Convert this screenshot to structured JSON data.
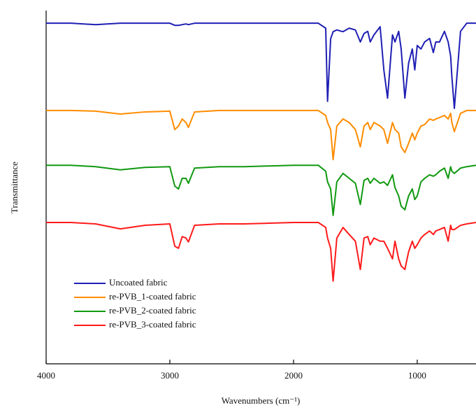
{
  "chart_data": {
    "type": "line",
    "x_label": "Wavenumbers (cm⁻¹)",
    "y_label": "Transmittance",
    "xlim": [
      4000,
      525
    ],
    "ylim": [
      0,
      100
    ],
    "xticks": [
      4000,
      3000,
      2000,
      1000
    ],
    "legend": "lower left",
    "x": [
      4000,
      3800,
      3600,
      3400,
      3200,
      3000,
      2960,
      2930,
      2900,
      2870,
      2850,
      2800,
      2600,
      2400,
      2200,
      2000,
      1800,
      1740,
      1725,
      1700,
      1680,
      1650,
      1600,
      1550,
      1500,
      1460,
      1430,
      1400,
      1380,
      1350,
      1300,
      1270,
      1240,
      1200,
      1180,
      1150,
      1130,
      1100,
      1070,
      1040,
      1020,
      1000,
      970,
      940,
      900,
      870,
      850,
      820,
      780,
      750,
      730,
      720,
      700,
      650,
      600,
      525
    ],
    "series": [
      {
        "name": "Uncoated fabric",
        "color": "#1f1fb4",
        "values": [
          96.4,
          96.4,
          96.0,
          96.4,
          96.4,
          96.4,
          95.8,
          95.8,
          96.0,
          96.2,
          96.0,
          96.4,
          96.4,
          96.4,
          96.4,
          96.4,
          96.4,
          95.0,
          74.3,
          92.0,
          94.0,
          94.5,
          94.0,
          95.0,
          94.5,
          91.1,
          93.5,
          94.1,
          91.1,
          93.1,
          95.4,
          83.2,
          75.2,
          93.1,
          91.1,
          94.1,
          89.1,
          75.2,
          85.1,
          89.1,
          83.2,
          90.1,
          89.1,
          91.1,
          92.1,
          88.1,
          91.1,
          91.1,
          94.1,
          91.1,
          87.1,
          81.2,
          72.3,
          94.1,
          96.4,
          96.4
        ]
      },
      {
        "name": "re-PVB_1-coated fabric",
        "color": "#ff8c00",
        "values": [
          71.7,
          71.7,
          71.5,
          70.7,
          71.3,
          71.5,
          66.3,
          67.3,
          69.3,
          68.3,
          66.9,
          71.3,
          71.7,
          71.7,
          71.7,
          71.7,
          71.7,
          70.3,
          68.3,
          66.3,
          57.8,
          67.3,
          69.3,
          68.3,
          66.3,
          61.4,
          67.3,
          68.3,
          66.3,
          68.3,
          67.3,
          66.3,
          62.4,
          68.3,
          66.3,
          65.3,
          61.4,
          59.8,
          62.4,
          65.3,
          63.4,
          65.3,
          67.3,
          67.7,
          69.3,
          68.9,
          69.3,
          69.7,
          70.3,
          69.3,
          70.9,
          68.3,
          65.7,
          70.9,
          71.7,
          71.7
        ]
      },
      {
        "name": "re-PVB_2-coated fabric",
        "color": "#119911",
        "values": [
          56.2,
          56.2,
          55.8,
          54.9,
          55.6,
          55.8,
          50.3,
          49.5,
          52.5,
          52.5,
          51.1,
          55.4,
          55.8,
          55.8,
          56.0,
          56.2,
          56.2,
          54.5,
          51.5,
          49.5,
          42.0,
          51.5,
          53.9,
          52.5,
          51.1,
          45.1,
          51.9,
          52.5,
          51.1,
          52.5,
          51.1,
          51.5,
          50.5,
          53.5,
          49.9,
          47.5,
          44.6,
          43.6,
          47.5,
          49.5,
          46.5,
          47.5,
          51.5,
          52.5,
          53.5,
          53.1,
          53.5,
          54.5,
          55.4,
          52.5,
          55.8,
          54.5,
          53.9,
          55.4,
          55.8,
          56.2
        ]
      },
      {
        "name": "re-PVB_3-coated fabric",
        "color": "#ff1a1a",
        "values": [
          40.0,
          40.0,
          39.6,
          38.2,
          39.2,
          39.6,
          33.3,
          32.7,
          36.0,
          35.6,
          34.5,
          39.2,
          39.6,
          39.6,
          39.8,
          40.0,
          40.0,
          38.6,
          35.6,
          32.7,
          23.4,
          35.6,
          38.6,
          36.6,
          34.7,
          26.7,
          35.6,
          36.0,
          33.7,
          35.6,
          34.7,
          34.7,
          32.7,
          29.7,
          34.7,
          29.7,
          27.7,
          26.7,
          31.7,
          34.7,
          32.7,
          33.7,
          35.6,
          36.6,
          37.6,
          36.6,
          37.6,
          38.0,
          38.6,
          34.7,
          39.2,
          38.0,
          38.0,
          39.2,
          39.6,
          40.0
        ]
      }
    ]
  }
}
